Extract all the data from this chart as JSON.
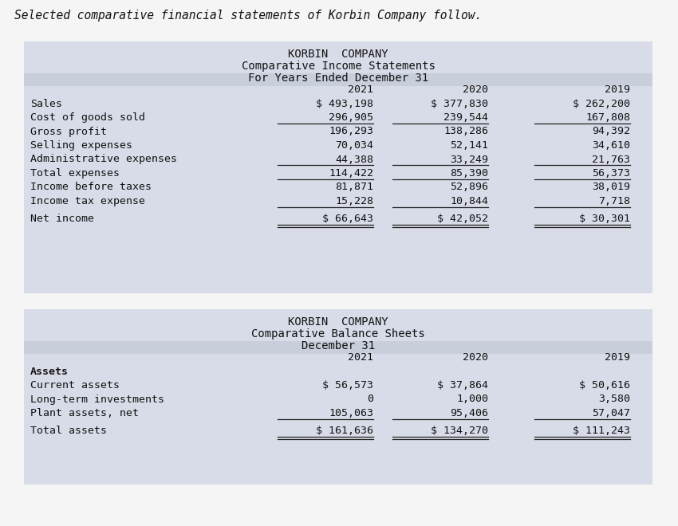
{
  "header_text": "Selected comparative financial statements of Korbin Company follow.",
  "bg_color": "#f5f5f5",
  "table_bg": "#d8dce8",
  "table1_title1": "KORBIN  COMPANY",
  "table1_title2": "Comparative Income Statements",
  "table1_title3": "For Years Ended December 31",
  "years": [
    "2021",
    "2020",
    "2019"
  ],
  "table1_rows": [
    {
      "label": "Sales",
      "v2021": "$ 493,198",
      "v2020": "$ 377,830",
      "v2019": "$ 262,200",
      "bold": false,
      "under": false,
      "double_under": false,
      "extra_space_before": false
    },
    {
      "label": "Cost of goods sold",
      "v2021": "296,905",
      "v2020": "239,544",
      "v2019": "167,808",
      "bold": false,
      "under": true,
      "double_under": false,
      "extra_space_before": false
    },
    {
      "label": "Gross profit",
      "v2021": "196,293",
      "v2020": "138,286",
      "v2019": "94,392",
      "bold": false,
      "under": false,
      "double_under": false,
      "extra_space_before": false
    },
    {
      "label": "Selling expenses",
      "v2021": "70,034",
      "v2020": "52,141",
      "v2019": "34,610",
      "bold": false,
      "under": false,
      "double_under": false,
      "extra_space_before": false
    },
    {
      "label": "Administrative expenses",
      "v2021": "44,388",
      "v2020": "33,249",
      "v2019": "21,763",
      "bold": false,
      "under": true,
      "double_under": false,
      "extra_space_before": false
    },
    {
      "label": "Total expenses",
      "v2021": "114,422",
      "v2020": "85,390",
      "v2019": "56,373",
      "bold": false,
      "under": true,
      "double_under": false,
      "extra_space_before": false
    },
    {
      "label": "Income before taxes",
      "v2021": "81,871",
      "v2020": "52,896",
      "v2019": "38,019",
      "bold": false,
      "under": false,
      "double_under": false,
      "extra_space_before": false
    },
    {
      "label": "Income tax expense",
      "v2021": "15,228",
      "v2020": "10,844",
      "v2019": "7,718",
      "bold": false,
      "under": true,
      "double_under": false,
      "extra_space_before": false
    },
    {
      "label": "Net income",
      "v2021": "$ 66,643",
      "v2020": "$ 42,052",
      "v2019": "$ 30,301",
      "bold": false,
      "under": false,
      "double_under": true,
      "extra_space_before": true
    }
  ],
  "table2_title1": "KORBIN  COMPANY",
  "table2_title2": "Comparative Balance Sheets",
  "table2_title3": "December 31",
  "table2_rows": [
    {
      "label": "Assets",
      "v2021": "",
      "v2020": "",
      "v2019": "",
      "bold": true,
      "under": false,
      "double_under": false,
      "extra_space_before": false
    },
    {
      "label": "Current assets",
      "v2021": "$ 56,573",
      "v2020": "$ 37,864",
      "v2019": "$ 50,616",
      "bold": false,
      "under": false,
      "double_under": false,
      "extra_space_before": false
    },
    {
      "label": "Long-term investments",
      "v2021": "0",
      "v2020": "1,000",
      "v2019": "3,580",
      "bold": false,
      "under": false,
      "double_under": false,
      "extra_space_before": false
    },
    {
      "label": "Plant assets, net",
      "v2021": "105,063",
      "v2020": "95,406",
      "v2019": "57,047",
      "bold": false,
      "under": true,
      "double_under": false,
      "extra_space_before": false
    },
    {
      "label": "Total assets",
      "v2021": "$ 161,636",
      "v2020": "$ 134,270",
      "v2019": "$ 111,243",
      "bold": false,
      "under": false,
      "double_under": true,
      "extra_space_before": true
    }
  ],
  "font_size": 9.5,
  "title_font_size": 10,
  "header_font_size": 10.5,
  "line_color": "#222222",
  "text_color": "#111111"
}
